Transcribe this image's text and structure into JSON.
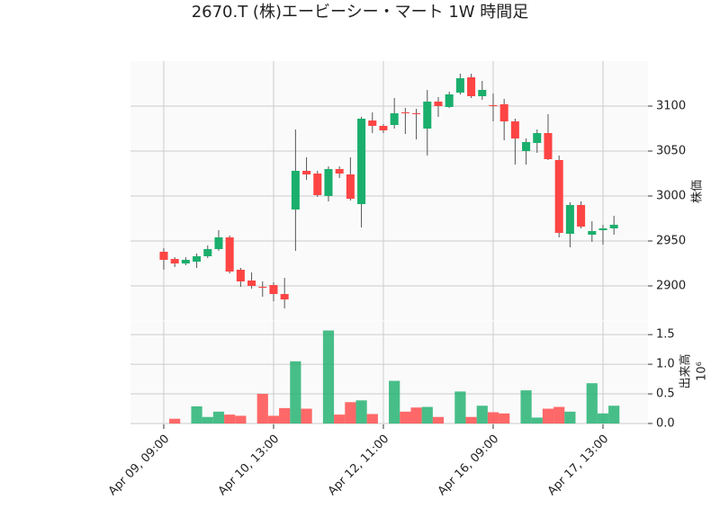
{
  "chart_data": {
    "type": "candlestick",
    "title": "2670.T (株)エービーシー・マート 1W 時間足",
    "ylabel": "株価",
    "volume_label": "出来高",
    "volume_scale": "10⁶",
    "categories": [
      "Apr 09, 09:00",
      null,
      null,
      null,
      null,
      null,
      null,
      null,
      null,
      null,
      "Apr 10, 13:00",
      null,
      null,
      null,
      null,
      null,
      null,
      null,
      null,
      null,
      "Apr 12, 11:00",
      null,
      null,
      null,
      null,
      null,
      null,
      null,
      null,
      null,
      "Apr 16, 09:00",
      null,
      null,
      null,
      null,
      null,
      null,
      null,
      null,
      null,
      "Apr 17, 13:00",
      null
    ],
    "open": [
      2938,
      2930,
      2925,
      2927,
      2933,
      2941,
      2954,
      2918,
      2906,
      2899,
      2901,
      2891,
      2985,
      3028,
      3025,
      3000,
      3030,
      3024,
      2991,
      3084,
      3078,
      3079,
      3093,
      3092,
      3075,
      3105,
      3099,
      3115,
      3132,
      3111,
      3101,
      3102,
      3083,
      3050,
      3059,
      3070,
      3040,
      2958,
      2990,
      2957,
      2962,
      2964
    ],
    "high": [
      2942,
      2932,
      2932,
      2936,
      2945,
      2962,
      2956,
      2920,
      2915,
      2905,
      2904,
      2909,
      3074,
      3043,
      3028,
      3033,
      3033,
      3043,
      3088,
      3093,
      3080,
      3109,
      3098,
      3097,
      3118,
      3110,
      3116,
      3136,
      3136,
      3128,
      3114,
      3108,
      3086,
      3064,
      3074,
      3091,
      3045,
      2993,
      2994,
      2972,
      2968,
      2978
    ],
    "low": [
      2918,
      2921,
      2923,
      2920,
      2931,
      2939,
      2914,
      2899,
      2897,
      2888,
      2883,
      2875,
      2939,
      3018,
      2999,
      2994,
      3020,
      2995,
      2965,
      3070,
      3070,
      3075,
      3069,
      3063,
      3045,
      3088,
      3098,
      3113,
      3109,
      3107,
      3083,
      3062,
      3035,
      3035,
      3048,
      3040,
      2954,
      2943,
      2964,
      2949,
      2946,
      2957
    ],
    "close": [
      2929,
      2925,
      2929,
      2933,
      2941,
      2954,
      2916,
      2905,
      2900,
      2898,
      2891,
      2885,
      3028,
      3024,
      3001,
      3030,
      3025,
      2997,
      3086,
      3078,
      3073,
      3092,
      3092,
      3091,
      3105,
      3100,
      3113,
      3131,
      3111,
      3118,
      3100,
      3083,
      3064,
      3060,
      3070,
      3041,
      2959,
      2990,
      2966,
      2961,
      2964,
      2968
    ],
    "volume": [
      0,
      0.08,
      0,
      0.29,
      0.11,
      0.2,
      0.15,
      0.13,
      0,
      0.5,
      0.13,
      0.26,
      1.05,
      0.25,
      0,
      1.57,
      0.15,
      0.36,
      0.39,
      0.16,
      0,
      0.72,
      0.2,
      0.27,
      0.28,
      0.11,
      0,
      0.54,
      0.11,
      0.3,
      0.19,
      0.17,
      0,
      0.56,
      0.1,
      0.25,
      0.28,
      0.2,
      0,
      0.68,
      0.17,
      0.3
    ],
    "up_color": "#1aaf6c",
    "down_color": "#ff4444",
    "xlim": [
      -3.03,
      44.1
    ],
    "ylim": [
      2861,
      3150
    ],
    "yticks": [
      2900,
      2950,
      3000,
      3050,
      3100
    ],
    "volume_ylim": [
      -0.015,
      1.73
    ],
    "volume_yticks": [
      {
        "value": 0,
        "label": "0.0"
      },
      {
        "value": 0.5,
        "label": "0.5"
      },
      {
        "value": 1.0,
        "label": "1.0"
      },
      {
        "value": 1.5,
        "label": "1.5"
      }
    ],
    "grid": true
  }
}
